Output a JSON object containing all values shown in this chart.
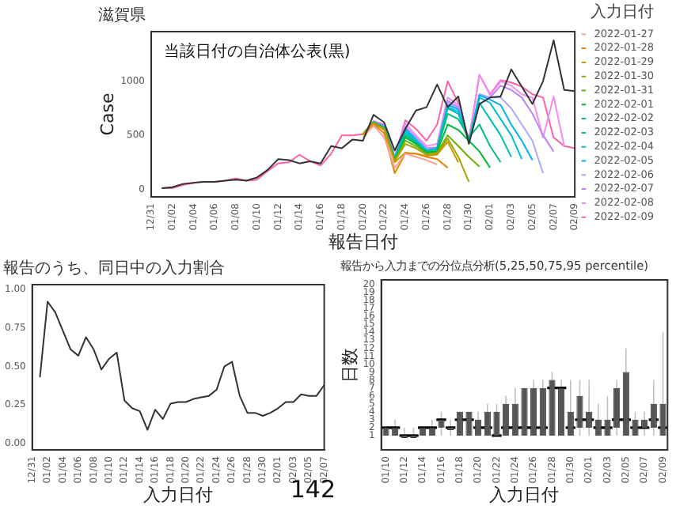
{
  "chart_data": [
    {
      "type": "line",
      "title": "滋賀県",
      "xlabel": "報告日付",
      "ylabel": "Case",
      "legend_title": "入力日付",
      "legend": "right",
      "grid": false,
      "annotations": [
        "当該日付の自治体公表(黒)"
      ],
      "categories": [
        "12/31",
        null,
        "01/02",
        null,
        "01/04",
        null,
        "01/06",
        null,
        "01/08",
        null,
        "01/10",
        null,
        "01/12",
        null,
        "01/14",
        null,
        "01/16",
        null,
        "01/18",
        null,
        "01/20",
        null,
        "01/22",
        null,
        "01/24",
        null,
        "01/26",
        null,
        "01/28",
        null,
        "01/30",
        null,
        "02/01",
        null,
        "02/03",
        null,
        "02/05",
        null,
        "02/07",
        null,
        "02/09"
      ],
      "ylim": [
        -70,
        1460
      ],
      "yticks": [
        0,
        500,
        1000
      ],
      "series": [
        {
          "color": "#333333",
          "values": [
            null,
            10,
            20,
            50,
            60,
            70,
            70,
            80,
            90,
            80,
            110,
            180,
            280,
            270,
            240,
            260,
            240,
            400,
            380,
            460,
            450,
            690,
            620,
            360,
            560,
            730,
            760,
            970,
            760,
            860,
            420,
            790,
            850,
            860,
            1110,
            950,
            790,
            1000,
            1380,
            920,
            910
          ]
        },
        {
          "name": "2022-01-27",
          "color": "#f8a39d",
          "values": [
            null,
            null,
            null,
            null,
            null,
            null,
            null,
            null,
            null,
            null,
            null,
            null,
            null,
            null,
            null,
            null,
            null,
            null,
            null,
            null,
            480,
            590,
            480,
            200,
            330,
            300,
            270,
            230,
            null,
            null,
            null,
            null,
            null,
            null,
            null,
            null,
            null,
            null,
            null,
            null,
            null
          ]
        },
        {
          "name": "2022-01-28",
          "color": "#e58700",
          "values": [
            null,
            null,
            null,
            null,
            null,
            null,
            null,
            null,
            null,
            null,
            null,
            null,
            null,
            null,
            null,
            null,
            null,
            null,
            null,
            null,
            500,
            600,
            520,
            150,
            330,
            330,
            300,
            280,
            200,
            null,
            null,
            null,
            null,
            null,
            null,
            null,
            null,
            null,
            null,
            null,
            null
          ]
        },
        {
          "name": "2022-01-29",
          "color": "#c99800",
          "values": [
            null,
            null,
            null,
            null,
            null,
            null,
            null,
            null,
            null,
            null,
            null,
            null,
            null,
            null,
            null,
            null,
            null,
            null,
            null,
            null,
            510,
            610,
            550,
            250,
            340,
            330,
            310,
            320,
            440,
            250,
            null,
            null,
            null,
            null,
            null,
            null,
            null,
            null,
            null,
            null,
            null
          ]
        },
        {
          "name": "2022-01-30",
          "color": "#a3a500",
          "values": [
            null,
            null,
            null,
            null,
            null,
            null,
            null,
            null,
            null,
            null,
            null,
            null,
            null,
            null,
            null,
            null,
            null,
            null,
            null,
            null,
            510,
            610,
            560,
            260,
            420,
            380,
            320,
            330,
            470,
            300,
            70,
            null,
            null,
            null,
            null,
            null,
            null,
            null,
            null,
            null,
            null
          ]
        },
        {
          "name": "2022-01-31",
          "color": "#6bb100",
          "values": [
            null,
            null,
            null,
            null,
            null,
            null,
            null,
            null,
            null,
            null,
            null,
            null,
            null,
            null,
            null,
            null,
            null,
            null,
            null,
            null,
            510,
            620,
            560,
            270,
            450,
            400,
            330,
            340,
            500,
            400,
            300,
            210,
            null,
            null,
            null,
            null,
            null,
            null,
            null,
            null,
            null
          ]
        },
        {
          "name": "2022-02-01",
          "color": "#00ba38",
          "values": [
            null,
            null,
            null,
            null,
            null,
            null,
            null,
            null,
            null,
            null,
            null,
            null,
            null,
            null,
            null,
            null,
            null,
            null,
            null,
            null,
            510,
            620,
            560,
            270,
            480,
            420,
            340,
            350,
            600,
            550,
            450,
            350,
            200,
            null,
            null,
            null,
            null,
            null,
            null,
            null,
            null
          ]
        },
        {
          "name": "2022-02-02",
          "color": "#00bf7d",
          "values": [
            null,
            null,
            null,
            null,
            null,
            null,
            null,
            null,
            null,
            null,
            null,
            null,
            null,
            null,
            null,
            null,
            null,
            null,
            null,
            null,
            510,
            620,
            570,
            280,
            500,
            430,
            350,
            360,
            700,
            650,
            480,
            600,
            400,
            250,
            null,
            null,
            null,
            null,
            null,
            null,
            null
          ]
        },
        {
          "name": "2022-02-03",
          "color": "#00c0af",
          "values": [
            null,
            null,
            null,
            null,
            null,
            null,
            null,
            null,
            null,
            null,
            null,
            null,
            null,
            null,
            null,
            null,
            null,
            null,
            null,
            null,
            510,
            620,
            570,
            280,
            520,
            440,
            350,
            370,
            750,
            700,
            450,
            800,
            650,
            500,
            300,
            null,
            null,
            null,
            null,
            null,
            null
          ]
        },
        {
          "name": "2022-02-04",
          "color": "#00bcd8",
          "values": [
            null,
            null,
            null,
            null,
            null,
            null,
            null,
            null,
            null,
            null,
            null,
            null,
            null,
            null,
            null,
            null,
            null,
            null,
            null,
            null,
            510,
            620,
            570,
            280,
            540,
            450,
            360,
            370,
            760,
            720,
            450,
            850,
            800,
            650,
            500,
            280,
            null,
            null,
            null,
            null,
            null
          ]
        },
        {
          "name": "2022-02-05",
          "color": "#00b0f6",
          "values": [
            null,
            null,
            null,
            null,
            null,
            null,
            null,
            null,
            null,
            null,
            null,
            null,
            null,
            null,
            null,
            null,
            null,
            null,
            null,
            null,
            510,
            620,
            580,
            290,
            560,
            460,
            360,
            380,
            780,
            740,
            450,
            870,
            830,
            780,
            600,
            450,
            270,
            null,
            null,
            null,
            null
          ]
        },
        {
          "name": "2022-02-06",
          "color": "#a9a8ff",
          "values": [
            null,
            null,
            null,
            null,
            null,
            null,
            null,
            null,
            null,
            null,
            null,
            null,
            null,
            null,
            null,
            null,
            null,
            null,
            null,
            null,
            510,
            620,
            580,
            290,
            570,
            470,
            370,
            380,
            800,
            750,
            450,
            880,
            850,
            850,
            750,
            600,
            450,
            150,
            null,
            null,
            null
          ]
        },
        {
          "name": "2022-02-07",
          "color": "#b983ff",
          "values": [
            null,
            null,
            null,
            null,
            null,
            null,
            null,
            null,
            null,
            null,
            null,
            null,
            null,
            null,
            null,
            null,
            null,
            null,
            null,
            null,
            510,
            630,
            590,
            300,
            580,
            480,
            380,
            390,
            820,
            760,
            450,
            880,
            850,
            960,
            920,
            850,
            700,
            500,
            350,
            null,
            null
          ]
        },
        {
          "name": "2022-02-08",
          "color": "#f08cf5",
          "values": [
            null,
            null,
            null,
            null,
            null,
            null,
            null,
            null,
            null,
            null,
            null,
            null,
            null,
            null,
            null,
            null,
            null,
            null,
            null,
            null,
            510,
            630,
            590,
            300,
            610,
            500,
            400,
            420,
            850,
            780,
            460,
            1060,
            870,
            1000,
            960,
            880,
            850,
            480,
            860,
            400,
            null
          ]
        },
        {
          "name": "2022-02-09",
          "color": "#fd61a8",
          "values": [
            null,
            10,
            10,
            40,
            60,
            70,
            70,
            80,
            100,
            80,
            90,
            170,
            240,
            250,
            320,
            260,
            220,
            330,
            500,
            500,
            510,
            630,
            600,
            300,
            640,
            560,
            450,
            600,
            1000,
            800,
            460,
            1060,
            880,
            1010,
            990,
            950,
            880,
            850,
            480,
            400,
            380
          ]
        }
      ]
    },
    {
      "type": "line",
      "title": "報告のうち、同日中の入力割合",
      "xlabel": "入力日付",
      "grid": false,
      "legend": false,
      "annotations": [
        "142"
      ],
      "categories": [
        "12/31",
        null,
        "01/02",
        null,
        "01/04",
        null,
        "01/06",
        null,
        "01/08",
        null,
        "01/10",
        null,
        "01/12",
        null,
        "01/14",
        null,
        "01/16",
        null,
        "01/18",
        null,
        "01/20",
        null,
        "01/22",
        null,
        "01/24",
        null,
        "01/26",
        null,
        "01/28",
        null,
        "01/30",
        null,
        "02/01",
        null,
        "02/03",
        null,
        "02/05",
        null,
        "02/07"
      ],
      "ylim": [
        -0.04,
        1.03
      ],
      "yticks": [
        {
          "value": 0,
          "label": "0.00"
        },
        {
          "value": 0.25,
          "label": "0.25"
        },
        {
          "value": 0.5,
          "label": "0.50"
        },
        {
          "value": 0.75,
          "label": "0.75"
        },
        {
          "value": 1,
          "label": "1.00"
        }
      ],
      "series": [
        {
          "color": "#333333",
          "values": [
            null,
            0.43,
            0.92,
            0.85,
            0.73,
            0.61,
            0.57,
            0.69,
            0.61,
            0.48,
            0.55,
            0.59,
            0.28,
            0.23,
            0.21,
            0.09,
            0.22,
            0.16,
            0.26,
            0.27,
            0.27,
            0.29,
            0.3,
            0.31,
            0.35,
            0.5,
            0.53,
            0.31,
            0.2,
            0.2,
            0.18,
            0.2,
            0.23,
            0.27,
            0.27,
            0.32,
            0.31,
            0.31,
            0.38
          ]
        }
      ]
    },
    {
      "type": "box",
      "title": "報告から入力までの分位点分析(5,25,50,75,95 percentile)",
      "xlabel": "入力日付",
      "ylabel": "日数",
      "grid": false,
      "legend": false,
      "color": "#333333",
      "categories": [
        "01/10",
        null,
        "01/12",
        null,
        "01/14",
        null,
        "01/16",
        null,
        "01/18",
        null,
        "01/20",
        null,
        "01/22",
        null,
        "01/24",
        null,
        "01/26",
        null,
        "01/28",
        null,
        "01/30",
        null,
        "02/01",
        null,
        "02/03",
        null,
        "02/05",
        null,
        "02/07",
        null,
        "02/09"
      ],
      "ylim": [
        -0.8,
        20.6
      ],
      "yticks": [
        1,
        2,
        3,
        4,
        5,
        6,
        7,
        8,
        9,
        10,
        11,
        12,
        13,
        14,
        15,
        16,
        17,
        18,
        19,
        20
      ],
      "boxes": [
        {
          "low": 1,
          "q1": 1,
          "median": 2,
          "q3": 2,
          "high": 2
        },
        {
          "low": 1,
          "q1": 1,
          "median": 2,
          "q3": 2,
          "high": 3
        },
        {
          "low": 1,
          "q1": 1,
          "median": 1,
          "q3": 1,
          "high": 2
        },
        {
          "low": 1,
          "q1": 1,
          "median": 1,
          "q3": 1,
          "high": 2
        },
        {
          "low": 1,
          "q1": 1,
          "median": 2,
          "q3": 2,
          "high": 2
        },
        {
          "low": 1,
          "q1": 1,
          "median": 2,
          "q3": 2,
          "high": 3
        },
        {
          "low": 1,
          "q1": 2,
          "median": 3,
          "q3": 3,
          "high": 4
        },
        {
          "low": 1,
          "q1": 2,
          "median": 2,
          "q3": 2,
          "high": 3
        },
        {
          "low": 1,
          "q1": 1,
          "median": 3,
          "q3": 4,
          "high": 4
        },
        {
          "low": 1,
          "q1": 1,
          "median": 3,
          "q3": 4,
          "high": 4
        },
        {
          "low": 1,
          "q1": 1,
          "median": 2,
          "q3": 3,
          "high": 4
        },
        {
          "low": 1,
          "q1": 1,
          "median": 2,
          "q3": 4,
          "high": 5
        },
        {
          "low": 1,
          "q1": 1,
          "median": 1,
          "q3": 4,
          "high": 5
        },
        {
          "low": 1,
          "q1": 1,
          "median": 2,
          "q3": 5,
          "high": 6
        },
        {
          "low": 1,
          "q1": 1,
          "median": 2,
          "q3": 5,
          "high": 7
        },
        {
          "low": 1,
          "q1": 1,
          "median": 2,
          "q3": 7,
          "high": 7
        },
        {
          "low": 1,
          "q1": 1,
          "median": 2,
          "q3": 7,
          "high": 8
        },
        {
          "low": 1,
          "q1": 1,
          "median": 2,
          "q3": 7,
          "high": 8
        },
        {
          "low": 1,
          "q1": 1,
          "median": 7,
          "q3": 8,
          "high": 9
        },
        {
          "low": 1,
          "q1": 1,
          "median": 7,
          "q3": 7,
          "high": 8
        },
        {
          "low": 1,
          "q1": 1,
          "median": 2,
          "q3": 4,
          "high": 8
        },
        {
          "low": 1,
          "q1": 2,
          "median": 3,
          "q3": 6,
          "high": 8
        },
        {
          "low": 1,
          "q1": 2,
          "median": 3,
          "q3": 4,
          "high": 8
        },
        {
          "low": 1,
          "q1": 1,
          "median": 2,
          "q3": 3,
          "high": 5
        },
        {
          "low": 1,
          "q1": 1,
          "median": 2,
          "q3": 3,
          "high": 6
        },
        {
          "low": 1,
          "q1": 2,
          "median": 3,
          "q3": 7,
          "high": 8
        },
        {
          "low": 1,
          "q1": 1,
          "median": 3,
          "q3": 9,
          "high": 12
        },
        {
          "low": 1,
          "q1": 1,
          "median": 2,
          "q3": 3,
          "high": 4
        },
        {
          "low": 1,
          "q1": 2,
          "median": 2,
          "q3": 3,
          "high": 4
        },
        {
          "low": 1,
          "q1": 2,
          "median": 3,
          "q3": 5,
          "high": 8
        },
        {
          "low": 1,
          "q1": 1,
          "median": 2,
          "q3": 5,
          "high": 14
        }
      ]
    }
  ]
}
